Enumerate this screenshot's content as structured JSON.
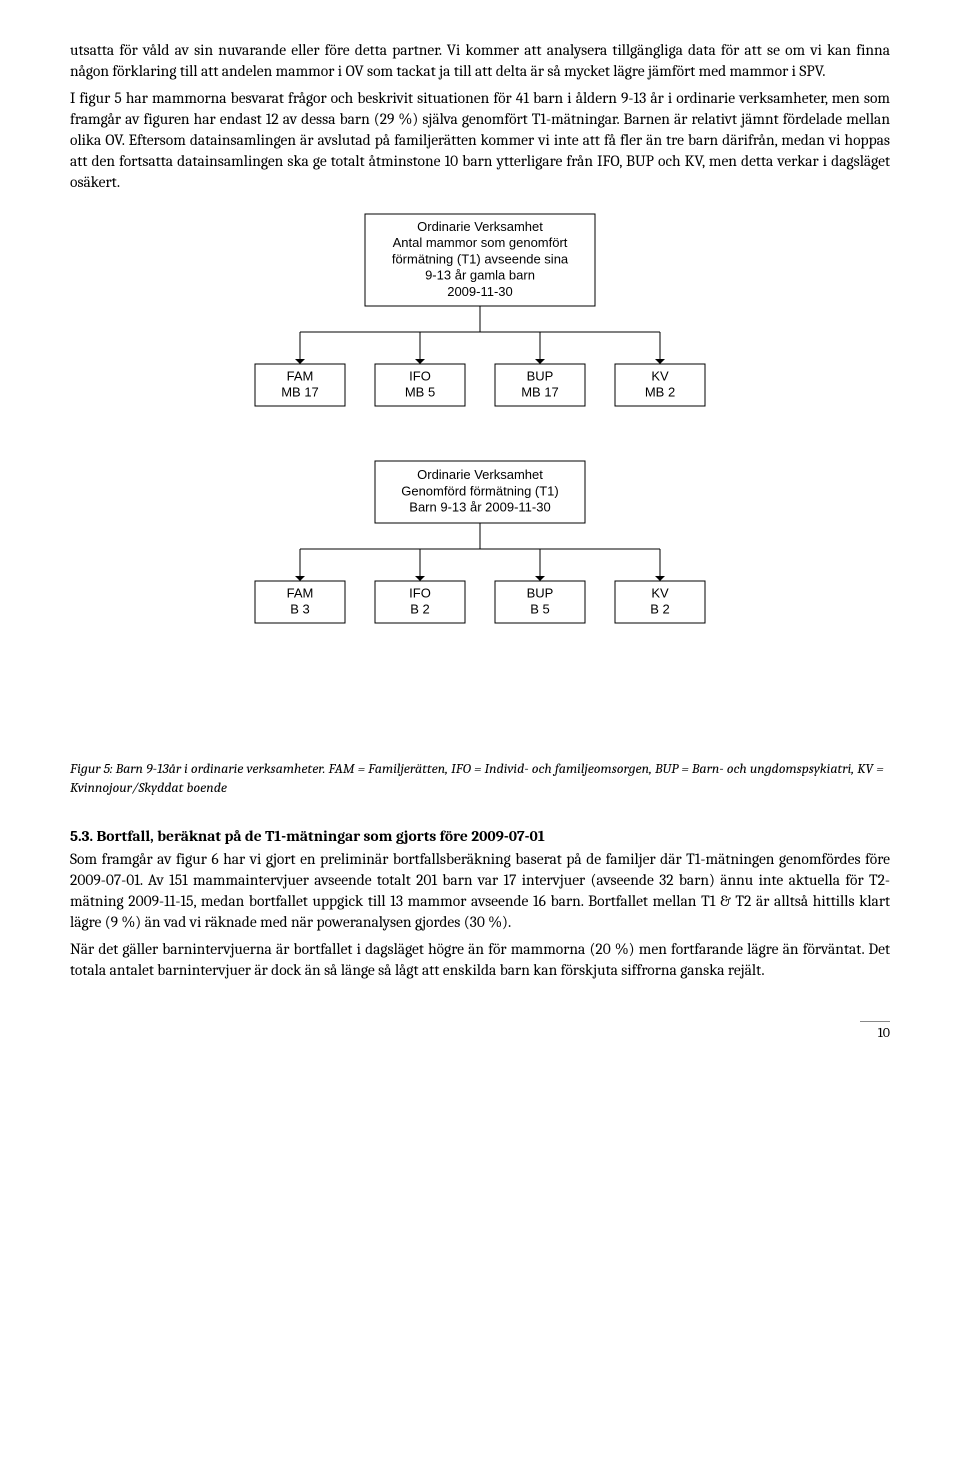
{
  "paragraph1": "utsatta för våld av sin nuvarande eller före detta partner.  Vi kommer att analysera tillgängliga data för att se om vi kan finna någon förklaring till att andelen mammor i OV som tackat ja till att delta är så mycket lägre jämfört med mammor i SPV.",
  "paragraph2": "I figur 5 har mammorna besvarat frågor och beskrivit situationen för 41 barn i åldern 9-13 år i ordinarie verksamheter, men som framgår av figuren har endast 12 av dessa barn (29 %) själva genomfört T1-mätningar. Barnen är relativt jämnt fördelade mellan olika OV. Eftersom datainsamlingen är avslutad på familjerätten kommer vi inte att få fler än tre barn därifrån, medan vi hoppas att den fortsatta datainsamlingen ska ge totalt åtminstone 10 barn ytterligare från IFO, BUP och KV, men detta verkar i dagsläget osäkert.",
  "caption": "Figur 5: Barn 9-13år i ordinarie verksamheter. FAM = Familjerätten, IFO = Individ- och familjeomsorgen, BUP = Barn- och ungdomspsykiatri, KV = Kvinnojour/Skyddat boende",
  "heading": "5.3. Bortfall, beräknat på de T1-mätningar som gjorts före 2009-07-01",
  "paragraph3": "Som framgår av figur 6 har vi gjort en preliminär bortfallsberäkning baserat på de familjer där T1-mätningen genomfördes före 2009-07-01. Av 151 mammaintervjuer avseende totalt 201 barn var 17 intervjuer (avseende 32 barn) ännu inte aktuella för T2-mätning 2009-11-15, medan bortfallet uppgick till 13 mammor avseende 16 barn. Bortfallet mellan T1 & T2 är alltså hittills klart lägre (9 %) än vad vi räknade med när poweranalysen gjordes (30 %).",
  "paragraph4": "När det gäller barnintervjuerna är bortfallet i dagsläget högre än för mammorna (20 %) men fortfarande lägre än förväntat. Det totala antalet barnintervjuer är dock än så länge så lågt att enskilda barn kan förskjuta siffrorna ganska rejält.",
  "pagenum": "10",
  "diagram": {
    "font_family": "Arial, Helvetica, sans-serif",
    "stroke": "#000000",
    "fill": "#ffffff",
    "root1": {
      "lines": [
        "Ordinarie Verksamhet",
        "Antal mammor som genomfört",
        "förmätning (T1) avseende sina",
        "9-13 år gamla barn",
        "2009-11-30"
      ]
    },
    "children1": [
      {
        "l1": "FAM",
        "l2": "MB 17"
      },
      {
        "l1": "IFO",
        "l2": "MB 5"
      },
      {
        "l1": "BUP",
        "l2": "MB 17"
      },
      {
        "l1": "KV",
        "l2": "MB 2"
      }
    ],
    "root2": {
      "lines": [
        "Ordinarie Verksamhet",
        "Genomförd förmätning (T1)",
        "Barn 9-13 år 2009-11-30"
      ]
    },
    "children2": [
      {
        "l1": "FAM",
        "l2": "B 3"
      },
      {
        "l1": "IFO",
        "l2": "B 2"
      },
      {
        "l1": "BUP",
        "l2": "B 5"
      },
      {
        "l1": "KV",
        "l2": "B 2"
      }
    ]
  }
}
